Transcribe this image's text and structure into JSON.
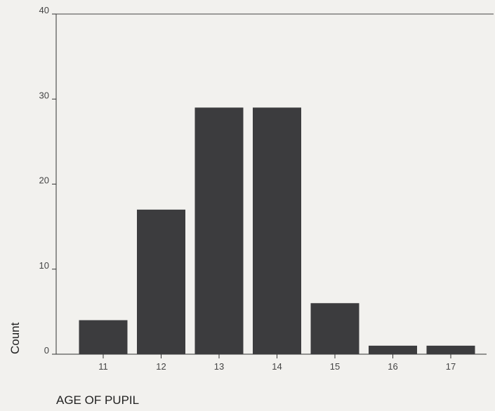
{
  "chart_data": {
    "type": "bar",
    "title": "",
    "xlabel": "AGE OF PUPIL",
    "ylabel": "Count",
    "categories": [
      "11",
      "12",
      "13",
      "14",
      "15",
      "16",
      "17"
    ],
    "values": [
      4,
      17,
      29,
      29,
      6,
      1,
      1
    ],
    "ylim": [
      0,
      40
    ],
    "yticks": [
      "0",
      "10",
      "20",
      "30",
      "40"
    ],
    "grid": false,
    "legend": "none",
    "bar_color": "#3c3c3e"
  }
}
